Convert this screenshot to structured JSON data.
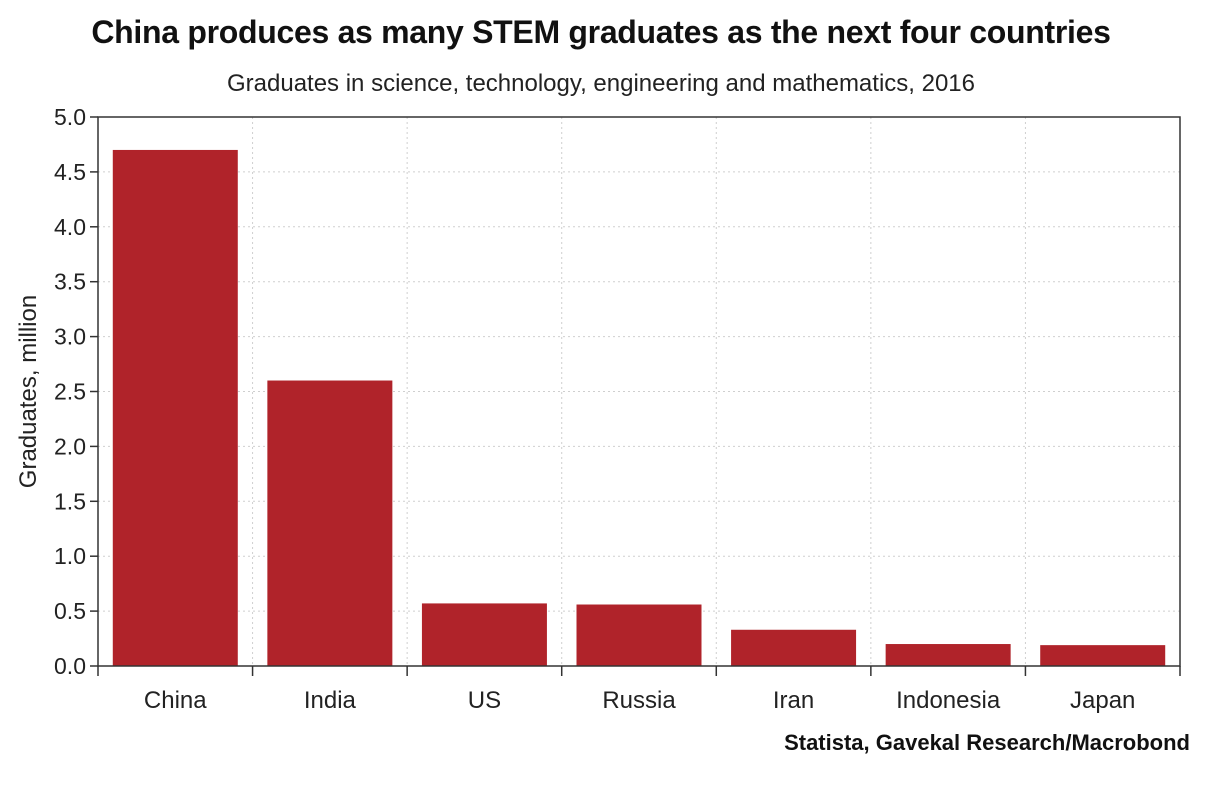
{
  "chart_data": {
    "type": "bar",
    "title": "China produces as many STEM graduates as the next four countries",
    "subtitle": "Graduates in science, technology, engineering and mathematics, 2016",
    "ylabel": "Graduates, million",
    "xlabel": "",
    "categories": [
      "China",
      "India",
      "US",
      "Russia",
      "Iran",
      "Indonesia",
      "Japan"
    ],
    "values": [
      4.7,
      2.6,
      0.57,
      0.56,
      0.33,
      0.2,
      0.19
    ],
    "ylim": [
      0,
      5.0
    ],
    "yticks": [
      "0.0",
      "0.5",
      "1.0",
      "1.5",
      "2.0",
      "2.5",
      "3.0",
      "3.5",
      "4.0",
      "4.5",
      "5.0"
    ],
    "grid": true,
    "bar_color": "#b0232a",
    "source": "Statista, Gavekal Research/Macrobond"
  }
}
